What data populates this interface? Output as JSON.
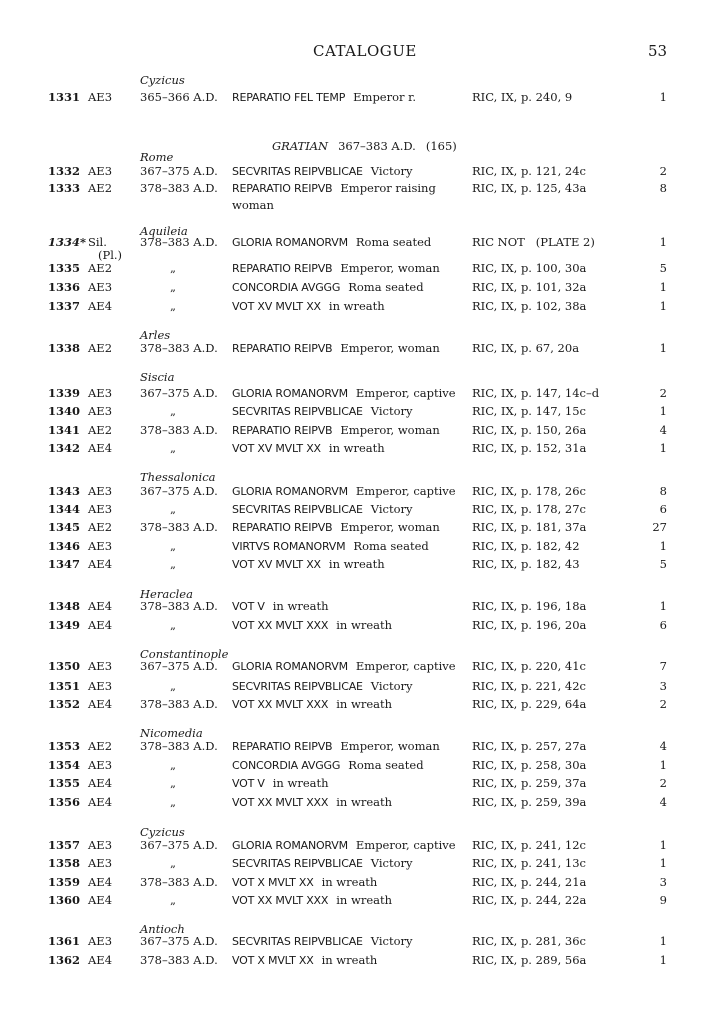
{
  "header": {
    "title": "CATALOGUE",
    "page_number": "53"
  },
  "sections": [
    {
      "mint": "Cyzicus",
      "rows": [
        {
          "no": "1331",
          "denom": "AE3",
          "date": "365–366 A.D.",
          "legend": "REPARATIO FEL TEMP",
          "desc": "Emperor r.",
          "ric": "RIC, IX, p. 240, 9",
          "count": "1"
        }
      ]
    },
    {
      "heading": {
        "name": "GRATIAN",
        "dates": "367–383 A.D.",
        "total": "(165)"
      },
      "mint": "Rome",
      "rows": [
        {
          "no": "1332",
          "denom": "AE3",
          "date": "367–375 A.D.",
          "legend": "SECVRITAS REIPVBLICAE",
          "desc": "Victory",
          "ric": "RIC, IX, p. 121, 24c",
          "count": "2"
        },
        {
          "no": "1333",
          "denom": "AE2",
          "date": "378–383 A.D.",
          "legend": "REPARATIO REIPVB",
          "desc": "Emperor raising",
          "desc2": "woman",
          "ric": "RIC, IX, p. 125, 43a",
          "count": "8"
        }
      ]
    },
    {
      "mint": "Aquileia",
      "rows": [
        {
          "no": "1334*",
          "italic_no": true,
          "denom": "Sil.",
          "denom2": "(Pl.)",
          "date": "378–383 A.D.",
          "legend": "GLORIA ROMANORVM",
          "desc": "Roma seated",
          "ric": "RIC NOT   (PLATE 2)",
          "count": "1"
        },
        {
          "no": "1335",
          "denom": "AE2",
          "date": "„",
          "legend": "REPARATIO REIPVB",
          "desc": "Emperor, woman",
          "ric": "RIC, IX, p. 100, 30a",
          "count": "5"
        },
        {
          "no": "1336",
          "denom": "AE3",
          "date": "„",
          "legend": "CONCORDIA AVGGG",
          "desc": "Roma seated",
          "ric": "RIC, IX, p. 101, 32a",
          "count": "1"
        },
        {
          "no": "1337",
          "denom": "AE4",
          "date": "„",
          "legend": "VOT XV MVLT XX",
          "desc": "in wreath",
          "ric": "RIC, IX, p. 102, 38a",
          "count": "1"
        }
      ]
    },
    {
      "mint": "Arles",
      "rows": [
        {
          "no": "1338",
          "denom": "AE2",
          "date": "378–383 A.D.",
          "legend": "REPARATIO REIPVB",
          "desc": "Emperor, woman",
          "ric": "RIC, IX, p. 67, 20a",
          "count": "1"
        }
      ]
    },
    {
      "mint": "Siscia",
      "rows": [
        {
          "no": "1339",
          "denom": "AE3",
          "date": "367–375 A.D.",
          "legend": "GLORIA ROMANORVM",
          "desc": "Emperor, captive",
          "ric": "RIC, IX, p. 147, 14c–d",
          "count": "2"
        },
        {
          "no": "1340",
          "denom": "AE3",
          "date": "„",
          "legend": "SECVRITAS REIPVBLICAE",
          "desc": "Victory",
          "ric": "RIC, IX, p. 147, 15c",
          "count": "1"
        },
        {
          "no": "1341",
          "denom": "AE2",
          "date": "378–383 A.D.",
          "legend": "REPARATIO REIPVB",
          "desc": "Emperor, woman",
          "ric": "RIC, IX, p. 150, 26a",
          "count": "4"
        },
        {
          "no": "1342",
          "denom": "AE4",
          "date": "„",
          "legend": "VOT XV MVLT XX",
          "desc": "in wreath",
          "ric": "RIC, IX, p. 152, 31a",
          "count": "1"
        }
      ]
    },
    {
      "mint": "Thessalonica",
      "rows": [
        {
          "no": "1343",
          "denom": "AE3",
          "date": "367–375 A.D.",
          "legend": "GLORIA ROMANORVM",
          "desc": "Emperor, captive",
          "ric": "RIC, IX, p. 178, 26c",
          "count": "8"
        },
        {
          "no": "1344",
          "denom": "AE3",
          "date": "„",
          "legend": "SECVRITAS REIPVBLICAE",
          "desc": "Victory",
          "ric": "RIC, IX, p. 178, 27c",
          "count": "6"
        },
        {
          "no": "1345",
          "denom": "AE2",
          "date": "378–383 A.D.",
          "legend": "REPARATIO REIPVB",
          "desc": "Emperor, woman",
          "ric": "RIC, IX, p. 181, 37a",
          "count": "27"
        },
        {
          "no": "1346",
          "denom": "AE3",
          "date": "„",
          "legend": "VIRTVS ROMANORVM",
          "desc": "Roma seated",
          "ric": "RIC, IX, p. 182, 42",
          "count": "1"
        },
        {
          "no": "1347",
          "denom": "AE4",
          "date": "„",
          "legend": "VOT XV MVLT XX",
          "desc": "in wreath",
          "ric": "RIC, IX, p. 182, 43",
          "count": "5"
        }
      ]
    },
    {
      "mint": "Heraclea",
      "rows": [
        {
          "no": "1348",
          "denom": "AE4",
          "date": "378–383 A.D.",
          "legend": "VOT V",
          "desc": "in wreath",
          "ric": "RIC, IX, p. 196, 18a",
          "count": "1"
        },
        {
          "no": "1349",
          "denom": "AE4",
          "date": "„",
          "legend": "VOT XX MVLT XXX",
          "desc": "in wreath",
          "ric": "RIC, IX, p. 196, 20a",
          "count": "6"
        }
      ]
    },
    {
      "mint": "Constantinople",
      "rows": [
        {
          "no": "1350",
          "denom": "AE3",
          "date": "367–375 A.D.",
          "legend": "GLORIA ROMANORVM",
          "desc": "Emperor, captive",
          "ric": "RIC, IX, p. 220, 41c",
          "count": "7"
        },
        {
          "no": "1351",
          "denom": "AE3",
          "date": "„",
          "legend": "SECVRITAS REIPVBLICAE",
          "desc": "Victory",
          "ric": "RIC, IX, p. 221, 42c",
          "count": "3"
        },
        {
          "no": "1352",
          "denom": "AE4",
          "date": "378–383 A.D.",
          "legend": "VOT XX MVLT XXX",
          "desc": "in wreath",
          "ric": "RIC, IX, p. 229, 64a",
          "count": "2"
        }
      ]
    },
    {
      "mint": "Nicomedia",
      "rows": [
        {
          "no": "1353",
          "denom": "AE2",
          "date": "378–383 A.D.",
          "legend": "REPARATIO REIPVB",
          "desc": "Emperor, woman",
          "ric": "RIC, IX, p. 257, 27a",
          "count": "4"
        },
        {
          "no": "1354",
          "denom": "AE3",
          "date": "„",
          "legend": "CONCORDIA AVGGG",
          "desc": "Roma seated",
          "ric": "RIC, IX, p. 258, 30a",
          "count": "1"
        },
        {
          "no": "1355",
          "denom": "AE4",
          "date": "„",
          "legend": "VOT V",
          "desc": "in wreath",
          "ric": "RIC, IX, p. 259, 37a",
          "count": "2"
        },
        {
          "no": "1356",
          "denom": "AE4",
          "date": "„",
          "legend": "VOT XX MVLT XXX",
          "desc": "in wreath",
          "ric": "RIC, IX, p. 259, 39a",
          "count": "4"
        }
      ]
    },
    {
      "mint": "Cyzicus",
      "rows": [
        {
          "no": "1357",
          "denom": "AE3",
          "date": "367–375 A.D.",
          "legend": "GLORIA ROMANORVM",
          "desc": "Emperor, captive",
          "ric": "RIC, IX, p. 241, 12c",
          "count": "1"
        },
        {
          "no": "1358",
          "denom": "AE3",
          "date": "„",
          "legend": "SECVRITAS REIPVBLICAE",
          "desc": "Victory",
          "ric": "RIC, IX, p. 241, 13c",
          "count": "1"
        },
        {
          "no": "1359",
          "denom": "AE4",
          "date": "378–383 A.D.",
          "legend": "VOT X MVLT XX",
          "desc": "in wreath",
          "ric": "RIC, IX, p. 244, 21a",
          "count": "3"
        },
        {
          "no": "1360",
          "denom": "AE4",
          "date": "„",
          "legend": "VOT XX MVLT XXX",
          "desc": "in wreath",
          "ric": "RIC, IX, p. 244, 22a",
          "count": "9"
        }
      ]
    },
    {
      "mint": "Antioch",
      "rows": [
        {
          "no": "1361",
          "denom": "AE3",
          "date": "367–375 A.D.",
          "legend": "SECVRITAS REIPVBLICAE",
          "desc": "Victory",
          "ric": "RIC, IX, p. 281, 36c",
          "count": "1"
        },
        {
          "no": "1362",
          "denom": "AE4",
          "date": "378–383 A.D.",
          "legend": "VOT X MVLT XX",
          "desc": "in wreath",
          "ric": "RIC, IX, p. 289, 56a",
          "count": "1"
        }
      ]
    }
  ]
}
